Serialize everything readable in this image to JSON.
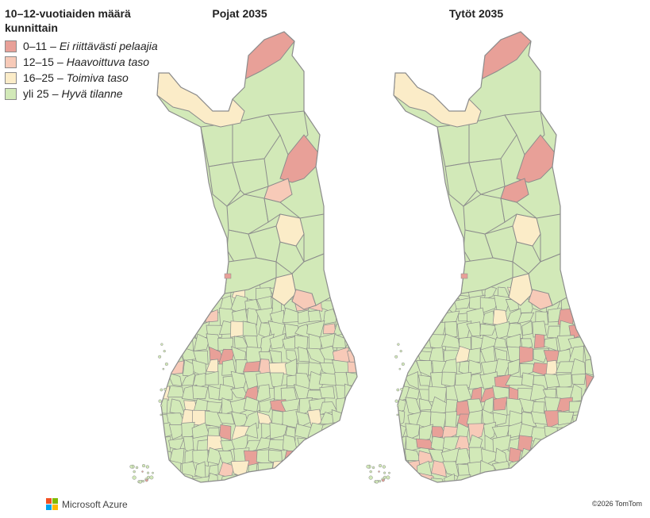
{
  "legend": {
    "title": "10–12-vuotiaiden määrä kunnittain",
    "items": [
      {
        "range": "0–11",
        "dash": "–",
        "desc": "Ei riittävästi pelaajia",
        "color": "#e8a098"
      },
      {
        "range": "12–15",
        "dash": "–",
        "desc": "Haavoittuva taso",
        "color": "#f7cab8"
      },
      {
        "range": "16–25",
        "dash": "–",
        "desc": "Toimiva taso",
        "color": "#fbecc8"
      },
      {
        "range": "yli 25",
        "dash": "–",
        "desc": "Hyvä tilanne",
        "color": "#d2e9b8"
      }
    ]
  },
  "maps": [
    {
      "title": "Pojat 2035"
    },
    {
      "title": "Tytöt 2035"
    }
  ],
  "colors": {
    "border": "#8c8c8c",
    "red": "#e8a098",
    "pink": "#f7cab8",
    "yellow": "#fbecc8",
    "green": "#d2e9b8"
  },
  "footer": {
    "brand": "Microsoft Azure",
    "copyright": "©2026 TomTom"
  }
}
